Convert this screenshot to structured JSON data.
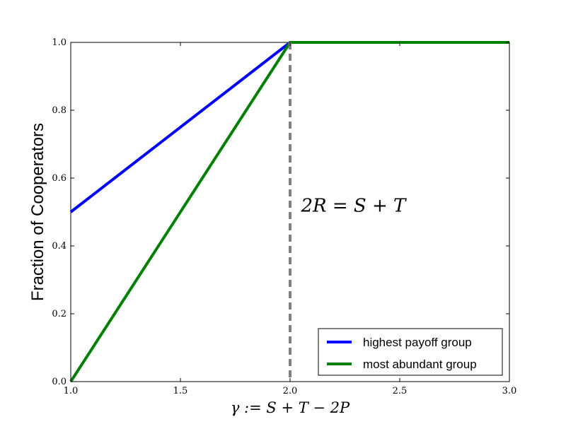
{
  "chart_data": {
    "type": "line",
    "xlabel": "γ := S + T − 2P",
    "ylabel": "Fraction of Cooperators",
    "xlim": [
      1.0,
      3.0
    ],
    "ylim": [
      0.0,
      1.0
    ],
    "x_ticks": [
      "1.0",
      "1.5",
      "2.0",
      "2.5",
      "3.0"
    ],
    "y_ticks": [
      "0.0",
      "0.2",
      "0.4",
      "0.6",
      "0.8",
      "1.0"
    ],
    "grid": false,
    "legend_position": "lower-right",
    "series": [
      {
        "name": "highest payoff group",
        "color": "#0000ff",
        "x": [
          1.0,
          2.0,
          3.0
        ],
        "y": [
          0.5,
          1.0,
          1.0
        ]
      },
      {
        "name": "most abundant group",
        "color": "#008000",
        "x": [
          1.0,
          2.0,
          3.0
        ],
        "y": [
          0.0,
          1.0,
          1.0
        ]
      }
    ],
    "vline": {
      "x": 2.0,
      "color": "#808080",
      "style": "dashed"
    },
    "annotation": {
      "text": "2R = S + T",
      "x": 2.05,
      "y": 0.52
    }
  }
}
